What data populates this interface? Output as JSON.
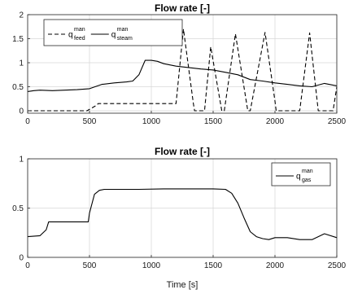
{
  "chart_data": [
    {
      "type": "line",
      "title": "Flow rate [-]",
      "xlabel": "",
      "ylabel": "",
      "xlim": [
        0,
        2500
      ],
      "ylim": [
        -0.05,
        2
      ],
      "xticks": [
        0,
        500,
        1000,
        1500,
        2000,
        2500
      ],
      "yticks": [
        0,
        0.5,
        1,
        1.5,
        2
      ],
      "ytick_labels": [
        "0",
        "0.5",
        "1",
        "1.5",
        "2"
      ],
      "grid": true,
      "legend_position": "top-left",
      "series": [
        {
          "name": "q_feed^man",
          "legend": {
            "base": "q",
            "sup": "man",
            "sub": "feed"
          },
          "line_style": "dashed",
          "color": "#000000",
          "x": [
            0,
            480,
            560,
            570,
            1190,
            1200,
            1260,
            1340,
            1350,
            1430,
            1480,
            1570,
            1590,
            1680,
            1780,
            1800,
            1920,
            2000,
            2010,
            2060,
            2200,
            2280,
            2350,
            2470,
            2500
          ],
          "y": [
            0,
            0,
            0.12,
            0.15,
            0.15,
            0.15,
            1.7,
            0.15,
            0,
            0,
            1.33,
            0,
            0,
            1.6,
            0,
            0,
            1.63,
            0.2,
            0,
            0,
            0,
            1.62,
            0,
            0,
            0.5
          ]
        },
        {
          "name": "q_steam^man",
          "legend": {
            "base": "q",
            "sup": "man",
            "sub": "steam"
          },
          "line_style": "solid",
          "color": "#000000",
          "x": [
            0,
            50,
            100,
            200,
            300,
            400,
            500,
            600,
            700,
            800,
            850,
            900,
            950,
            1000,
            1050,
            1100,
            1200,
            1300,
            1400,
            1500,
            1600,
            1700,
            1800,
            1900,
            2000,
            2100,
            2200,
            2300,
            2400,
            2500
          ],
          "y": [
            0.4,
            0.42,
            0.43,
            0.42,
            0.43,
            0.44,
            0.46,
            0.55,
            0.58,
            0.6,
            0.62,
            0.75,
            1.05,
            1.05,
            1.03,
            0.98,
            0.93,
            0.9,
            0.87,
            0.85,
            0.8,
            0.75,
            0.65,
            0.62,
            0.58,
            0.55,
            0.52,
            0.5,
            0.57,
            0.52
          ]
        }
      ]
    },
    {
      "type": "line",
      "title": "Flow rate [-]",
      "xlabel": "Time [s]",
      "ylabel": "",
      "xlim": [
        0,
        2500
      ],
      "ylim": [
        0,
        1
      ],
      "xticks": [
        0,
        500,
        1000,
        1500,
        2000,
        2500
      ],
      "yticks": [
        0,
        0.5,
        1
      ],
      "ytick_labels": [
        "0",
        "0.5",
        "1"
      ],
      "grid": true,
      "legend_position": "top-right",
      "series": [
        {
          "name": "q_gas^man",
          "legend": {
            "base": "q",
            "sup": "man",
            "sub": "gas"
          },
          "line_style": "solid",
          "color": "#000000",
          "x": [
            0,
            100,
            150,
            170,
            200,
            300,
            400,
            490,
            500,
            540,
            580,
            620,
            700,
            900,
            1100,
            1300,
            1500,
            1600,
            1650,
            1700,
            1750,
            1800,
            1850,
            1900,
            1950,
            2000,
            2050,
            2100,
            2200,
            2300,
            2400,
            2500
          ],
          "y": [
            0.21,
            0.22,
            0.28,
            0.36,
            0.36,
            0.36,
            0.36,
            0.36,
            0.45,
            0.64,
            0.68,
            0.69,
            0.69,
            0.69,
            0.695,
            0.695,
            0.695,
            0.69,
            0.65,
            0.55,
            0.4,
            0.26,
            0.21,
            0.19,
            0.18,
            0.2,
            0.2,
            0.2,
            0.18,
            0.18,
            0.24,
            0.2
          ]
        }
      ]
    }
  ]
}
